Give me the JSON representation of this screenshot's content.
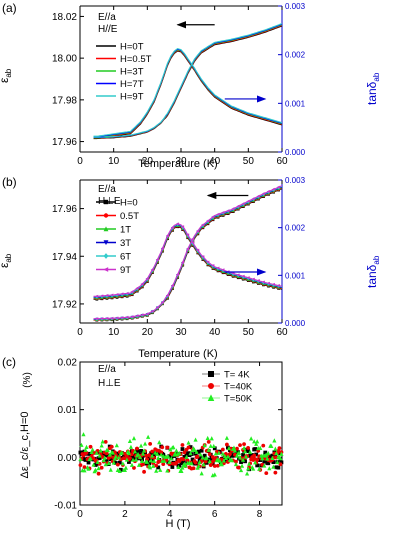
{
  "figure": {
    "background": "#ffffff",
    "axis_color": "#000000",
    "right_axis_color": "#0000cc"
  },
  "chart_data": [
    {
      "panel": "(a)",
      "type": "line",
      "annotation": [
        "E//a",
        "H//E"
      ],
      "xlabel": "Temperature (K)",
      "ylabel": [
        "ε",
        "ab"
      ],
      "y2label": [
        "tanδ",
        "ab"
      ],
      "xlim": [
        0,
        60
      ],
      "ylim": [
        17.955,
        18.025
      ],
      "y2lim": [
        0,
        0.003
      ],
      "xticks": [
        0,
        10,
        20,
        30,
        40,
        50,
        60
      ],
      "yticks": [
        17.96,
        17.98,
        18.0,
        18.02
      ],
      "y2ticks": [
        0,
        0.001,
        0.002,
        0.003
      ],
      "ytick_labels": [
        "17.96",
        "17.98",
        "18.00",
        "18.02"
      ],
      "y2tick_labels": [
        "0.000",
        "0.001",
        "0.002",
        "0.003"
      ],
      "legend_position": "upper-left",
      "series": [
        {
          "name": "H=0T",
          "color": "#000000"
        },
        {
          "name": "H=0.5T",
          "color": "#ff0000"
        },
        {
          "name": "H=3T",
          "color": "#22cc22"
        },
        {
          "name": "H=7T",
          "color": "#0000ff"
        },
        {
          "name": "H=9T",
          "color": "#33cccc"
        }
      ],
      "eps_curve": {
        "x": [
          5,
          10,
          15,
          20,
          22,
          24,
          26,
          28,
          30,
          32,
          34,
          36,
          40,
          45,
          50,
          55,
          60
        ],
        "y": [
          17.9618,
          17.9621,
          17.9628,
          17.9648,
          17.9665,
          17.969,
          17.973,
          17.979,
          17.986,
          17.993,
          17.999,
          18.003,
          18.007,
          18.0085,
          18.0105,
          18.013,
          18.016
        ]
      },
      "tan_curve": {
        "x": [
          5,
          10,
          15,
          18,
          20,
          22,
          24,
          26,
          27,
          28,
          29,
          30,
          31,
          32,
          34,
          36,
          38,
          40,
          45,
          50,
          55,
          60
        ],
        "y": [
          0.0003,
          0.00035,
          0.0004,
          0.0006,
          0.0008,
          0.00105,
          0.0014,
          0.0018,
          0.00195,
          0.00205,
          0.0021,
          0.00208,
          0.002,
          0.0019,
          0.0017,
          0.00148,
          0.0013,
          0.00115,
          0.00092,
          0.00078,
          0.00068,
          0.00058
        ]
      },
      "arrow_left": {
        "from": [
          40,
          18.016
        ],
        "to": [
          29,
          18.016
        ]
      },
      "arrow_right": {
        "from": [
          43,
          0.00109
        ],
        "to": [
          55,
          0.00109
        ]
      }
    },
    {
      "panel": "(b)",
      "type": "line",
      "annotation": [
        "E//a",
        "H⊥E"
      ],
      "xlabel": "Temperature (K)",
      "ylabel": [
        "ε",
        "ab"
      ],
      "y2label": [
        "tanδ",
        "ab"
      ],
      "xlim": [
        0,
        60
      ],
      "ylim": [
        17.912,
        17.972
      ],
      "y2lim": [
        0,
        0.003
      ],
      "xticks": [
        0,
        10,
        20,
        30,
        40,
        50,
        60
      ],
      "yticks": [
        17.92,
        17.94,
        17.96
      ],
      "y2ticks": [
        0,
        0.001,
        0.002,
        0.003
      ],
      "ytick_labels": [
        "17.92",
        "17.94",
        "17.96"
      ],
      "y2tick_labels": [
        "0.000",
        "0.001",
        "0.002",
        "0.003"
      ],
      "legend_position": "upper-left",
      "series": [
        {
          "name": "H=0",
          "color": "#000000",
          "marker": "square"
        },
        {
          "name": "0.5T",
          "color": "#ff0000",
          "marker": "circle"
        },
        {
          "name": "1T",
          "color": "#22cc22",
          "marker": "triangle"
        },
        {
          "name": "3T",
          "color": "#0000cc",
          "marker": "triangle-down"
        },
        {
          "name": "6T",
          "color": "#33cccc",
          "marker": "diamond"
        },
        {
          "name": "9T",
          "color": "#cc33cc",
          "marker": "triangle-left"
        }
      ],
      "eps_curve": {
        "x": [
          5,
          10,
          15,
          20,
          22,
          24,
          26,
          28,
          30,
          32,
          34,
          36,
          40,
          45,
          50,
          55,
          60
        ],
        "y": [
          17.9135,
          17.9137,
          17.9142,
          17.9155,
          17.917,
          17.9195,
          17.923,
          17.9285,
          17.935,
          17.9425,
          17.948,
          17.952,
          17.9565,
          17.959,
          17.9625,
          17.966,
          17.969
        ]
      },
      "tan_curve": {
        "x": [
          5,
          10,
          15,
          18,
          20,
          22,
          24,
          26,
          27,
          28,
          29,
          30,
          31,
          32,
          34,
          36,
          38,
          40,
          45,
          50,
          55,
          60
        ],
        "y": [
          0.00053,
          0.00056,
          0.0006,
          0.00075,
          0.0009,
          0.00115,
          0.00145,
          0.0018,
          0.00193,
          0.00202,
          0.00205,
          0.00203,
          0.00195,
          0.00182,
          0.0016,
          0.0014,
          0.00125,
          0.00115,
          0.00102,
          0.00092,
          0.00082,
          0.00074
        ]
      },
      "arrow_left": {
        "from": [
          50,
          17.9655
        ],
        "to": [
          38,
          17.9655
        ]
      },
      "arrow_right": {
        "from": [
          43,
          0.00107
        ],
        "to": [
          55,
          0.00107
        ]
      }
    },
    {
      "panel": "(c)",
      "type": "scatter",
      "annotation": [
        "E//a",
        "H⊥E"
      ],
      "xlabel": "H (T)",
      "ylabel": "Δε_c/ε_c,H=0",
      "ylabel_unit": "(%)",
      "xlim": [
        0,
        9
      ],
      "ylim": [
        -0.01,
        0.02
      ],
      "xticks": [
        0,
        2,
        4,
        6,
        8
      ],
      "yticks": [
        -0.01,
        0.0,
        0.01,
        0.02
      ],
      "ytick_labels": [
        "-0.01",
        "0.00",
        "0.01",
        "0.02"
      ],
      "legend_position": "upper-right",
      "series": [
        {
          "name": "T= 4K",
          "color": "#000000",
          "marker": "square",
          "spread": 0.0018
        },
        {
          "name": "T=40K",
          "color": "#ee0000",
          "marker": "circle",
          "spread": 0.0024
        },
        {
          "name": "T=50K",
          "color": "#22ee22",
          "marker": "triangle",
          "spread": 0.0034
        }
      ]
    }
  ]
}
